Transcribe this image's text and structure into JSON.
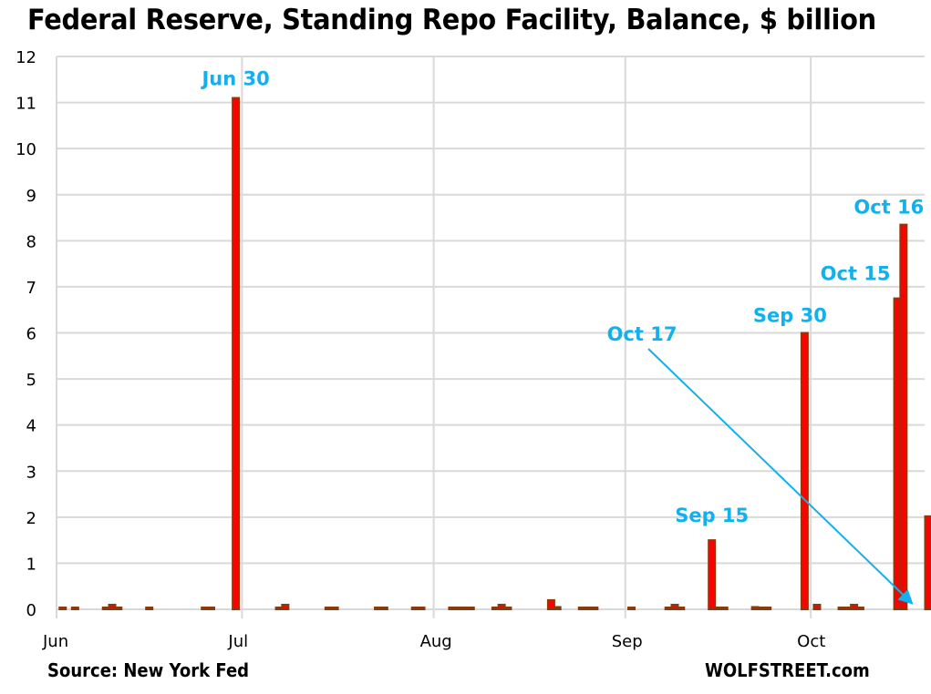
{
  "chart_data": {
    "type": "bar",
    "title": "Federal Reserve, Standing Repo Facility, Balance, $ billion",
    "xlabel": "",
    "ylabel": "",
    "ylim": [
      0,
      12
    ],
    "yticks": [
      "0",
      "1",
      "2",
      "3",
      "4",
      "5",
      "6",
      "7",
      "8",
      "9",
      "10",
      "11",
      "12"
    ],
    "xticks": [
      {
        "label": "Jun",
        "date": "06-01"
      },
      {
        "label": "Jul",
        "date": "07-01"
      },
      {
        "label": "Aug",
        "date": "08-01"
      },
      {
        "label": "Sep",
        "date": "09-01"
      },
      {
        "label": "Oct",
        "date": "10-01"
      }
    ],
    "grid": true,
    "colors": {
      "bar_fill": "#ff0000",
      "bar_edge": "#8b3a0e",
      "annotation": "#12b0ec",
      "grid": "#d9d9d9"
    },
    "series": [
      {
        "name": "Standing Repo Facility balance",
        "points": [
          {
            "date": "06-02",
            "value": 0.01
          },
          {
            "date": "06-04",
            "value": 0.01
          },
          {
            "date": "06-09",
            "value": 0.02
          },
          {
            "date": "06-10",
            "value": 0.1
          },
          {
            "date": "06-11",
            "value": 0.02
          },
          {
            "date": "06-16",
            "value": 0.01
          },
          {
            "date": "06-25",
            "value": 0.01
          },
          {
            "date": "06-26",
            "value": 0.01
          },
          {
            "date": "06-30",
            "value": 11.1
          },
          {
            "date": "07-07",
            "value": 0.02
          },
          {
            "date": "07-08",
            "value": 0.1
          },
          {
            "date": "07-15",
            "value": 0.01
          },
          {
            "date": "07-16",
            "value": 0.01
          },
          {
            "date": "07-23",
            "value": 0.01
          },
          {
            "date": "07-24",
            "value": 0.01
          },
          {
            "date": "07-29",
            "value": 0.01
          },
          {
            "date": "07-30",
            "value": 0.01
          },
          {
            "date": "08-04",
            "value": 0.01
          },
          {
            "date": "08-05",
            "value": 0.01
          },
          {
            "date": "08-06",
            "value": 0.01
          },
          {
            "date": "08-07",
            "value": 0.02
          },
          {
            "date": "08-11",
            "value": 0.02
          },
          {
            "date": "08-12",
            "value": 0.1
          },
          {
            "date": "08-13",
            "value": 0.02
          },
          {
            "date": "08-20",
            "value": 0.2
          },
          {
            "date": "08-21",
            "value": 0.05
          },
          {
            "date": "08-25",
            "value": 0.01
          },
          {
            "date": "08-26",
            "value": 0.01
          },
          {
            "date": "08-27",
            "value": 0.01
          },
          {
            "date": "09-02",
            "value": 0.01
          },
          {
            "date": "09-08",
            "value": 0.02
          },
          {
            "date": "09-09",
            "value": 0.1
          },
          {
            "date": "09-10",
            "value": 0.02
          },
          {
            "date": "09-15",
            "value": 1.5
          },
          {
            "date": "09-16",
            "value": 0.01
          },
          {
            "date": "09-17",
            "value": 0.01
          },
          {
            "date": "09-22",
            "value": 0.05
          },
          {
            "date": "09-23",
            "value": 0.01
          },
          {
            "date": "09-24",
            "value": 0.01
          },
          {
            "date": "09-30",
            "value": 6.0
          },
          {
            "date": "10-02",
            "value": 0.1
          },
          {
            "date": "10-06",
            "value": 0.01
          },
          {
            "date": "10-07",
            "value": 0.02
          },
          {
            "date": "10-08",
            "value": 0.1
          },
          {
            "date": "10-09",
            "value": 0.02
          },
          {
            "date": "10-15",
            "value": 6.75
          },
          {
            "date": "10-16",
            "value": 8.35
          },
          {
            "date": "10-17",
            "value": 0.0
          },
          {
            "date": "10-20",
            "value": 2.02
          }
        ]
      }
    ],
    "annotations": [
      {
        "text": "Jun 30",
        "date": "06-30",
        "value": 11.1
      },
      {
        "text": "Sep 15",
        "date": "09-15",
        "value": 1.5
      },
      {
        "text": "Sep 30",
        "date": "09-30",
        "value": 6.0
      },
      {
        "text": "Oct 15",
        "date": "10-15",
        "value": 6.75
      },
      {
        "text": "Oct 16",
        "date": "10-16",
        "value": 8.35
      },
      {
        "text": "Oct 17",
        "date": "10-17",
        "value": 0.0,
        "arrow": true
      }
    ]
  },
  "footer": {
    "source": "Source: New York Fed",
    "credit": "WOLFSTREET.com"
  }
}
